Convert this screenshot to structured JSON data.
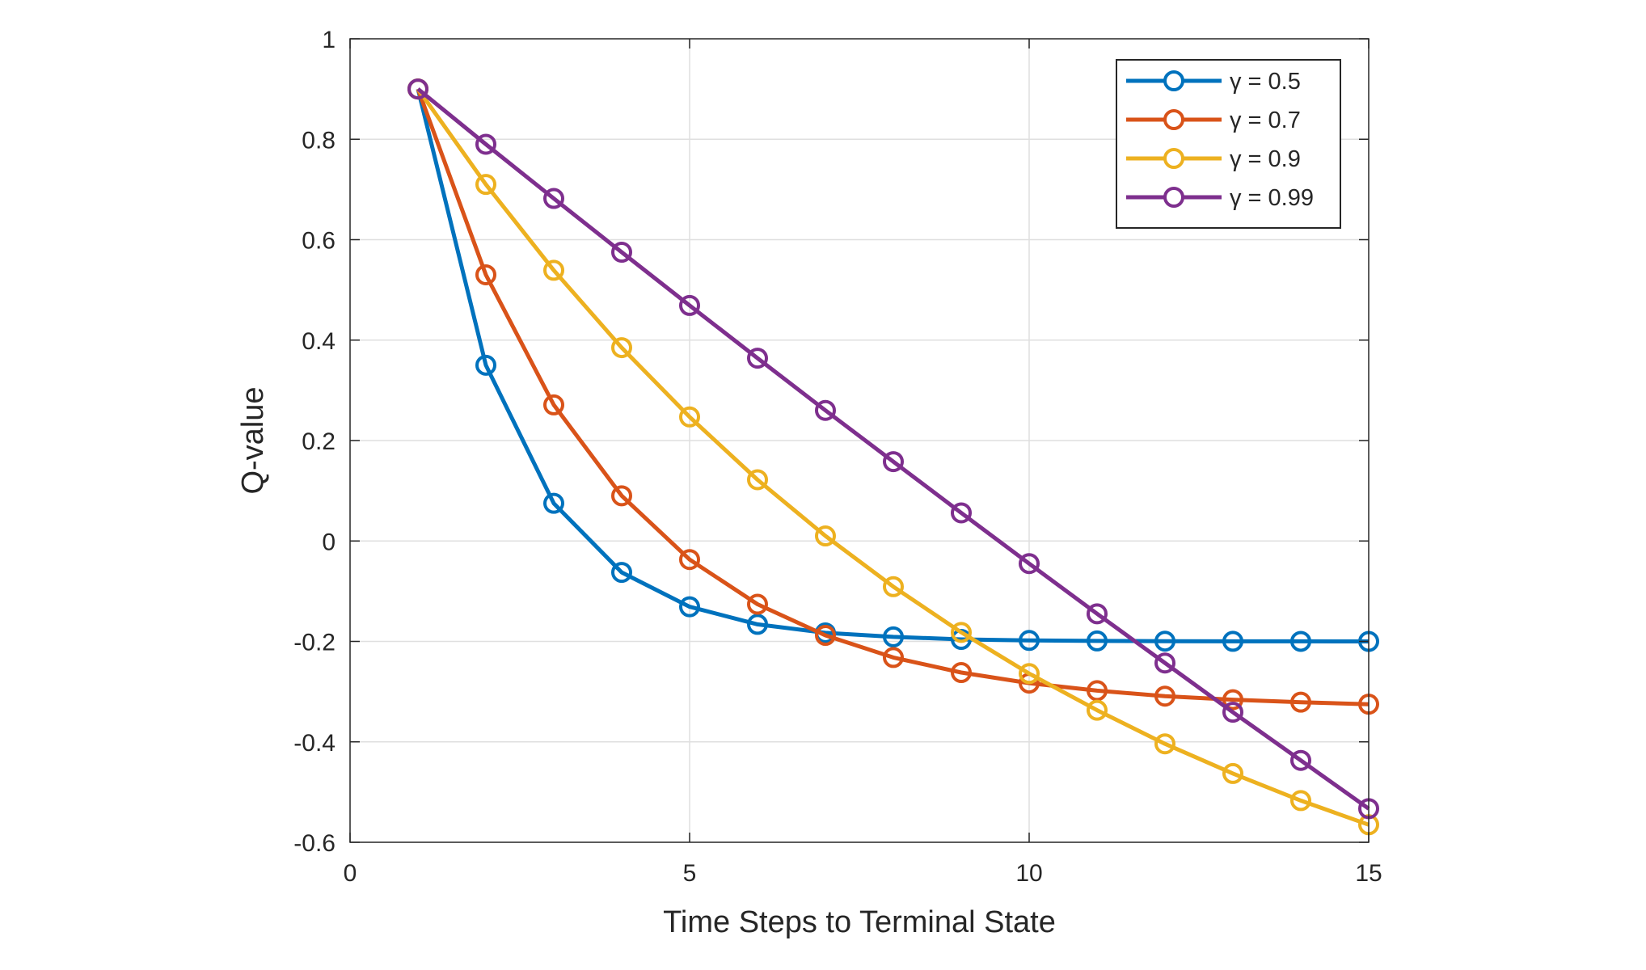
{
  "chart_data": {
    "type": "line",
    "title": "",
    "xlabel": "Time Steps to Terminal State",
    "ylabel": "Q-value",
    "xlim": [
      0,
      15
    ],
    "ylim": [
      -0.6,
      1
    ],
    "xticks": [
      0,
      5,
      10,
      15
    ],
    "xtick_labels": [
      "0",
      "5",
      "10",
      "15"
    ],
    "yticks": [
      -0.6,
      -0.4,
      -0.2,
      0,
      0.2,
      0.4,
      0.6,
      0.8,
      1
    ],
    "ytick_labels": [
      "-0.6",
      "-0.4",
      "-0.2",
      "0",
      "0.2",
      "0.4",
      "0.6",
      "0.8",
      "1"
    ],
    "grid": true,
    "legend_position": "top-right",
    "x": [
      1,
      2,
      3,
      4,
      5,
      6,
      7,
      8,
      9,
      10,
      11,
      12,
      13,
      14,
      15
    ],
    "series": [
      {
        "name": "γ = 0.5",
        "color": "#0072BD",
        "values": [
          0.9,
          0.35,
          0.075,
          -0.0625,
          -0.131,
          -0.166,
          -0.183,
          -0.191,
          -0.196,
          -0.198,
          -0.199,
          -0.1995,
          -0.1998,
          -0.1999,
          -0.2
        ]
      },
      {
        "name": "γ = 0.7",
        "color": "#D95319",
        "values": [
          0.9,
          0.53,
          0.271,
          0.09,
          -0.037,
          -0.126,
          -0.188,
          -0.232,
          -0.262,
          -0.283,
          -0.298,
          -0.309,
          -0.316,
          -0.321,
          -0.325
        ]
      },
      {
        "name": "γ = 0.9",
        "color": "#EDB120",
        "values": [
          0.9,
          0.71,
          0.539,
          0.385,
          0.247,
          0.122,
          0.01,
          -0.091,
          -0.182,
          -0.264,
          -0.337,
          -0.404,
          -0.463,
          -0.517,
          -0.565
        ]
      },
      {
        "name": "γ = 0.99",
        "color": "#7E2F8E",
        "values": [
          0.9,
          0.79,
          0.682,
          0.575,
          0.469,
          0.364,
          0.26,
          0.158,
          0.056,
          -0.045,
          -0.145,
          -0.243,
          -0.341,
          -0.437,
          -0.533
        ]
      }
    ]
  }
}
